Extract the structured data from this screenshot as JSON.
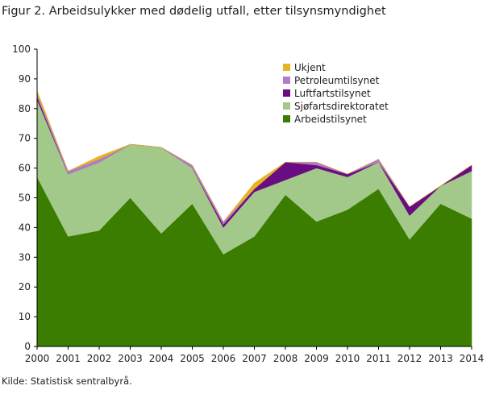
{
  "figure": {
    "title": "Figur 2. Arbeidsulykker med dødelig utfall, etter tilsynsmyndighet",
    "source": "Kilde: Statistisk sentralbyrå."
  },
  "chart_data": {
    "type": "area",
    "stacked": true,
    "title": "Figur 2. Arbeidsulykker med dødelig utfall, etter tilsynsmyndighet",
    "xlabel": "",
    "ylabel": "",
    "categories": [
      "2000",
      "2001",
      "2002",
      "2003",
      "2004",
      "2005",
      "2006",
      "2007",
      "2008",
      "2009",
      "2010",
      "2011",
      "2012",
      "2013",
      "2014"
    ],
    "ylim": [
      0,
      100
    ],
    "yticks": [
      0,
      10,
      20,
      30,
      40,
      50,
      60,
      70,
      80,
      90,
      100
    ],
    "grid": false,
    "legend_position": "top-right",
    "series": [
      {
        "name": "Arbeidstilsynet",
        "color": "#3a7d00",
        "values": [
          57,
          37,
          39,
          50,
          38,
          48,
          31,
          37,
          51,
          42,
          46,
          53,
          36,
          48,
          43
        ]
      },
      {
        "name": "Sjøfartsdirektoratet",
        "color": "#a3c98a",
        "values": [
          26,
          21,
          23,
          18,
          29,
          12,
          9,
          15,
          5,
          18,
          11,
          9,
          8,
          6,
          16
        ]
      },
      {
        "name": "Luftfartstilsynet",
        "color": "#6a0d83",
        "values": [
          1,
          0,
          0,
          0,
          0,
          0,
          1,
          1,
          6,
          1,
          1,
          0,
          3,
          0,
          2
        ]
      },
      {
        "name": "Petroleumtilsynet",
        "color": "#b07cc8",
        "values": [
          1,
          1,
          1,
          0,
          0,
          1,
          1,
          0,
          0,
          1,
          0,
          1,
          0,
          0,
          0
        ]
      },
      {
        "name": "Ukjent",
        "color": "#e8b321",
        "values": [
          1,
          0,
          1,
          0,
          0,
          0,
          0,
          2,
          0,
          0,
          0,
          0,
          0,
          0,
          0
        ]
      }
    ],
    "legend_order": [
      "Ukjent",
      "Petroleumtilsynet",
      "Luftfartstilsynet",
      "Sjøfartsdirektoratet",
      "Arbeidstilsynet"
    ]
  }
}
